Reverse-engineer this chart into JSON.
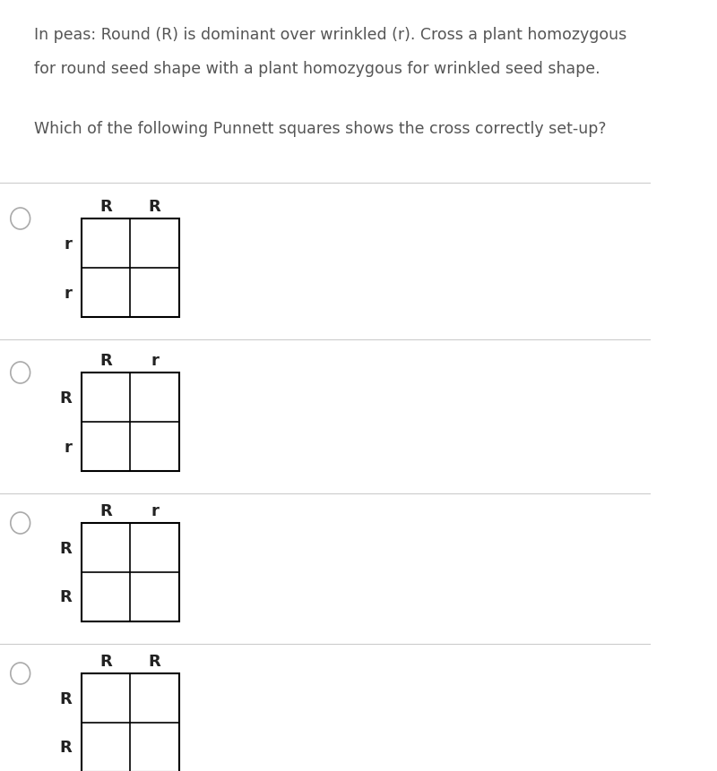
{
  "title_line1": "In peas: Round (R) is dominant over wrinkled (r). Cross a plant homozygous",
  "title_line2": "for round seed shape with a plant homozygous for wrinkled seed shape.",
  "question": "Which of the following Punnett squares shows the cross correctly set-up?",
  "bg_color": "#ffffff",
  "text_color": "#555555",
  "grid_color": "#000000",
  "divider_color": "#cccccc",
  "options": [
    {
      "col_labels": [
        "R",
        "R"
      ],
      "row_labels": [
        "r",
        "r"
      ]
    },
    {
      "col_labels": [
        "R",
        "r"
      ],
      "row_labels": [
        "R",
        "r"
      ]
    },
    {
      "col_labels": [
        "R",
        "r"
      ],
      "row_labels": [
        "R",
        "R"
      ]
    },
    {
      "col_labels": [
        "R",
        "R"
      ],
      "row_labels": [
        "R",
        "R"
      ]
    }
  ]
}
